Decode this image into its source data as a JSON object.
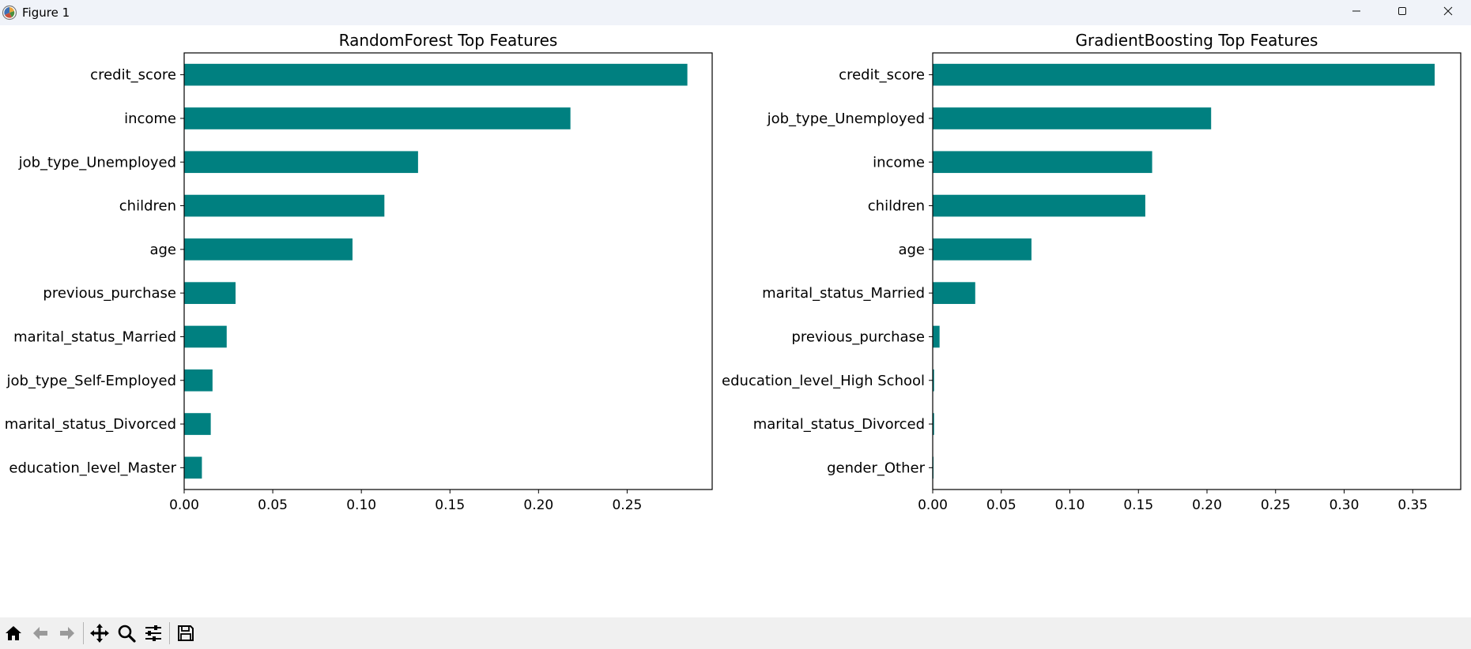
{
  "window": {
    "title": "Figure 1",
    "controls": [
      "minimize-icon",
      "maximize-icon",
      "close-icon"
    ]
  },
  "toolbar": {
    "buttons": [
      "home-icon",
      "back-icon",
      "forward-icon",
      "pan-icon",
      "zoom-icon",
      "configure-subplots-icon",
      "save-icon"
    ]
  },
  "colors": {
    "bar": "#008080",
    "titlebar": "#f0f3f9",
    "toolbar": "#f0f0f0"
  },
  "chart_data": [
    {
      "type": "bar",
      "orientation": "horizontal",
      "title": "RandomForest Top Features",
      "categories": [
        "credit_score",
        "income",
        "job_type_Unemployed",
        "children",
        "age",
        "previous_purchase",
        "marital_status_Married",
        "job_type_Self-Employed",
        "marital_status_Divorced",
        "education_level_Master"
      ],
      "values": [
        0.284,
        0.218,
        0.132,
        0.113,
        0.095,
        0.029,
        0.024,
        0.016,
        0.015,
        0.01
      ],
      "xlim": [
        0,
        0.298
      ],
      "xticks": [
        0.0,
        0.05,
        0.1,
        0.15,
        0.2,
        0.25
      ],
      "xtick_labels": [
        "0.00",
        "0.05",
        "0.10",
        "0.15",
        "0.20",
        "0.25"
      ],
      "grid": false
    },
    {
      "type": "bar",
      "orientation": "horizontal",
      "title": "GradientBoosting Top Features",
      "categories": [
        "credit_score",
        "job_type_Unemployed",
        "income",
        "children",
        "age",
        "marital_status_Married",
        "previous_purchase",
        "education_level_High School",
        "marital_status_Divorced",
        "gender_Other"
      ],
      "values": [
        0.366,
        0.203,
        0.16,
        0.155,
        0.072,
        0.031,
        0.005,
        0.001,
        0.001,
        0.0005
      ],
      "xlim": [
        0,
        0.385
      ],
      "xticks": [
        0.0,
        0.05,
        0.1,
        0.15,
        0.2,
        0.25,
        0.3,
        0.35
      ],
      "xtick_labels": [
        "0.00",
        "0.05",
        "0.10",
        "0.15",
        "0.20",
        "0.25",
        "0.30",
        "0.35"
      ],
      "grid": false
    }
  ]
}
